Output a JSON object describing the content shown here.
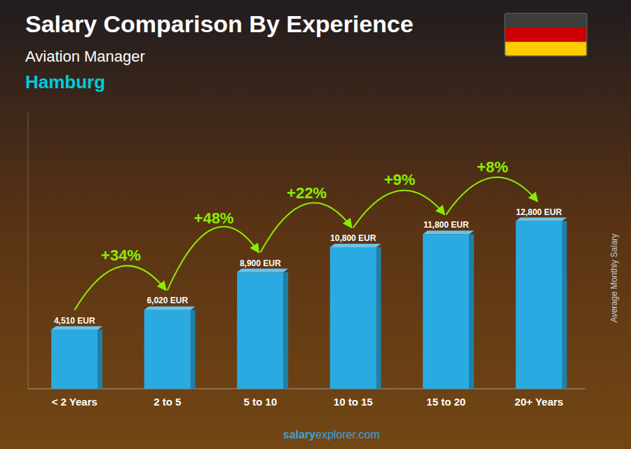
{
  "chart_data": {
    "type": "bar",
    "title": "Salary Comparison By Experience",
    "subtitle": [
      "Aviation Manager",
      "Hamburg"
    ],
    "y_label": "Average Monthly Salary",
    "categories": [
      "< 2 Years",
      "2 to 5",
      "5 to 10",
      "10 to 15",
      "15 to 20",
      "20+ Years"
    ],
    "values": [
      4510,
      6020,
      8900,
      10800,
      11800,
      12800
    ],
    "value_labels": [
      "4,510 EUR",
      "6,020 EUR",
      "8,900 EUR",
      "10,800 EUR",
      "11,800 EUR",
      "12,800 EUR"
    ],
    "data_labels": true,
    "color": "#29ABE2",
    "ylim": [
      0,
      21120
    ],
    "tick_labels": "x",
    "grid": false,
    "annotations": [
      "+34%",
      "+48%",
      "+22%",
      "+9%",
      "+8%"
    ],
    "watermark": [
      "salary",
      "explorer.com"
    ]
  }
}
